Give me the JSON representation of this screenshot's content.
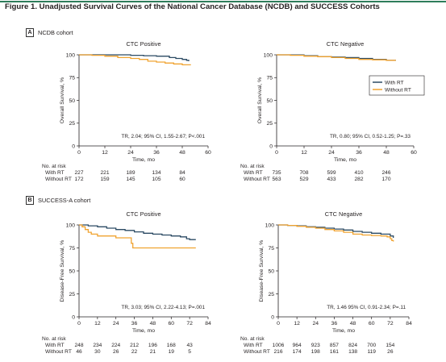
{
  "figure": {
    "title": "Figure 1. Unadjusted Survival Curves of the National Cancer Database (NCDB) and SUCCESS Cohorts"
  },
  "colors": {
    "with_rt": "#2b4a63",
    "without_rt": "#f0a330"
  },
  "risk_header": "No. at risk",
  "panels": [
    {
      "letter": "A",
      "label": "NCDB cohort"
    },
    {
      "letter": "B",
      "label": "SUCCESS-A cohort"
    }
  ],
  "chart_data": [
    {
      "type": "line",
      "panel": "A",
      "title": "CTC Positive",
      "xlabel": "Time, mo",
      "ylabel": "Overall Survival, %",
      "xlim": [
        0,
        60
      ],
      "ylim": [
        0,
        100
      ],
      "xticks": [
        0,
        12,
        24,
        36,
        48,
        60
      ],
      "yticks": [
        0,
        25,
        50,
        75,
        100
      ],
      "annotation": "TR, 2.04; 95% CI, 1.55-2.67; P<.001",
      "series": [
        {
          "name": "With RT",
          "points": [
            [
              0,
              100
            ],
            [
              6,
              100
            ],
            [
              12,
              100
            ],
            [
              18,
              100
            ],
            [
              24,
              99.5
            ],
            [
              30,
              99
            ],
            [
              36,
              98.5
            ],
            [
              42,
              97
            ],
            [
              45,
              96
            ],
            [
              48,
              95
            ],
            [
              50,
              94
            ],
            [
              51,
              93
            ]
          ]
        },
        {
          "name": "Without RT",
          "points": [
            [
              0,
              100
            ],
            [
              6,
              99.5
            ],
            [
              12,
              98.5
            ],
            [
              18,
              97
            ],
            [
              24,
              96
            ],
            [
              28,
              95
            ],
            [
              32,
              93
            ],
            [
              36,
              92
            ],
            [
              40,
              91
            ],
            [
              44,
              90
            ],
            [
              48,
              89
            ],
            [
              52,
              89
            ]
          ]
        }
      ],
      "risk": {
        "times": [
          0,
          12,
          24,
          36,
          48
        ],
        "rows": [
          {
            "label": "With RT",
            "values": [
              "227",
              "221",
              "189",
              "134",
              "84"
            ]
          },
          {
            "label": "Without RT",
            "values": [
              "172",
              "159",
              "145",
              "105",
              "60"
            ]
          }
        ]
      }
    },
    {
      "type": "line",
      "panel": "A",
      "title": "CTC Negative",
      "xlabel": "Time, mo",
      "ylabel": "Overall Survival, %",
      "xlim": [
        0,
        60
      ],
      "ylim": [
        0,
        100
      ],
      "xticks": [
        0,
        12,
        24,
        36,
        48,
        60
      ],
      "yticks": [
        0,
        25,
        50,
        75,
        100
      ],
      "legend": {
        "position": "upper-right",
        "entries": [
          "With RT",
          "Without RT"
        ]
      },
      "annotation": "TR, 0.80; 95% CI, 0.52-1.25; P=.33",
      "series": [
        {
          "name": "With RT",
          "points": [
            [
              0,
              100
            ],
            [
              6,
              99.8
            ],
            [
              12,
              99
            ],
            [
              18,
              98
            ],
            [
              24,
              97.5
            ],
            [
              30,
              97
            ],
            [
              36,
              96
            ],
            [
              42,
              95
            ],
            [
              48,
              94
            ],
            [
              52,
              93.5
            ]
          ]
        },
        {
          "name": "Without RT",
          "points": [
            [
              0,
              100
            ],
            [
              6,
              99.5
            ],
            [
              12,
              98.5
            ],
            [
              18,
              98
            ],
            [
              24,
              97
            ],
            [
              30,
              96
            ],
            [
              36,
              95
            ],
            [
              42,
              94.5
            ],
            [
              48,
              94
            ],
            [
              52,
              93.5
            ]
          ]
        }
      ],
      "risk": {
        "times": [
          0,
          12,
          24,
          36,
          48
        ],
        "rows": [
          {
            "label": "With RT",
            "values": [
              "735",
              "708",
              "599",
              "410",
              "246"
            ]
          },
          {
            "label": "Without RT",
            "values": [
              "563",
              "529",
              "433",
              "282",
              "170"
            ]
          }
        ]
      }
    },
    {
      "type": "line",
      "panel": "B",
      "title": "CTC Positive",
      "xlabel": "Time, mo",
      "ylabel": "Disease-Free Survival, %",
      "xlim": [
        0,
        84
      ],
      "ylim": [
        0,
        100
      ],
      "xticks": [
        0,
        12,
        24,
        36,
        48,
        60,
        72,
        84
      ],
      "yticks": [
        0,
        25,
        50,
        75,
        100
      ],
      "annotation": "TR, 3.03; 95% CI, 2.22-4.13; P=.001",
      "series": [
        {
          "name": "With RT",
          "points": [
            [
              0,
              100
            ],
            [
              6,
              99
            ],
            [
              12,
              98
            ],
            [
              18,
              96.5
            ],
            [
              24,
              95
            ],
            [
              30,
              94
            ],
            [
              36,
              92.5
            ],
            [
              42,
              91
            ],
            [
              48,
              90
            ],
            [
              54,
              89
            ],
            [
              60,
              88
            ],
            [
              66,
              87
            ],
            [
              70,
              85
            ],
            [
              72,
              84
            ],
            [
              76,
              84
            ]
          ]
        },
        {
          "name": "Without RT",
          "points": [
            [
              0,
              100
            ],
            [
              2,
              98
            ],
            [
              4,
              95
            ],
            [
              6,
              92
            ],
            [
              8,
              90
            ],
            [
              12,
              88
            ],
            [
              20,
              88
            ],
            [
              24,
              86
            ],
            [
              32,
              86
            ],
            [
              34,
              80
            ],
            [
              35,
              75
            ],
            [
              60,
              75
            ],
            [
              76,
              75
            ]
          ]
        }
      ],
      "risk": {
        "times": [
          0,
          12,
          24,
          36,
          48,
          60,
          72
        ],
        "rows": [
          {
            "label": "With RT",
            "values": [
              "248",
              "234",
              "224",
              "212",
              "196",
              "168",
              "43"
            ]
          },
          {
            "label": "Without RT",
            "values": [
              "46",
              "30",
              "26",
              "22",
              "21",
              "19",
              "5"
            ]
          }
        ]
      }
    },
    {
      "type": "line",
      "panel": "B",
      "title": "CTC Negative",
      "xlabel": "Time, mo",
      "ylabel": "Disease-Free Survival, %",
      "xlim": [
        0,
        84
      ],
      "ylim": [
        0,
        100
      ],
      "xticks": [
        0,
        12,
        24,
        36,
        48,
        60,
        72,
        84
      ],
      "yticks": [
        0,
        25,
        50,
        75,
        100
      ],
      "annotation": "TR, 1.46 95% CI, 0.91-2.34; P=.11",
      "series": [
        {
          "name": "With RT",
          "points": [
            [
              0,
              100
            ],
            [
              6,
              99.5
            ],
            [
              12,
              99
            ],
            [
              18,
              98
            ],
            [
              24,
              97.5
            ],
            [
              30,
              96.5
            ],
            [
              36,
              95.5
            ],
            [
              42,
              94.5
            ],
            [
              48,
              93
            ],
            [
              54,
              92
            ],
            [
              60,
              91
            ],
            [
              66,
              90
            ],
            [
              72,
              88
            ],
            [
              74,
              86
            ]
          ]
        },
        {
          "name": "Without RT",
          "points": [
            [
              0,
              100
            ],
            [
              6,
              99.5
            ],
            [
              12,
              98.5
            ],
            [
              18,
              97.5
            ],
            [
              24,
              96.5
            ],
            [
              30,
              95
            ],
            [
              36,
              93.5
            ],
            [
              42,
              92
            ],
            [
              48,
              90
            ],
            [
              54,
              89
            ],
            [
              60,
              88.5
            ],
            [
              66,
              88
            ],
            [
              70,
              87
            ],
            [
              72,
              85
            ],
            [
              73,
              83
            ],
            [
              74,
              82
            ]
          ]
        }
      ],
      "risk": {
        "times": [
          0,
          12,
          24,
          36,
          48,
          60,
          72
        ],
        "rows": [
          {
            "label": "With RT",
            "values": [
              "1006",
              "964",
              "923",
              "857",
              "824",
              "700",
              "154"
            ]
          },
          {
            "label": "Without RT",
            "values": [
              "216",
              "174",
              "198",
              "161",
              "138",
              "119",
              "26"
            ]
          }
        ]
      }
    }
  ]
}
